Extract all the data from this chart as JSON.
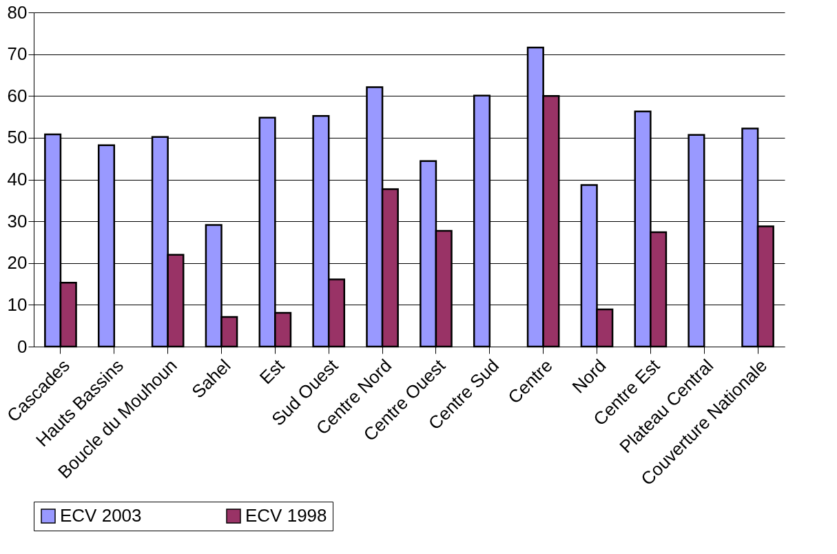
{
  "chart_data": {
    "type": "bar",
    "categories": [
      "Cascades",
      "Hauts Bassins",
      "Boucle du Mouhoun",
      "Sahel",
      "Est",
      "Sud Ouest",
      "Centre Nord",
      "Centre Ouest",
      "Centre Sud",
      "Centre",
      "Nord",
      "Centre Est",
      "Plateau Central",
      "Couverture Nationale"
    ],
    "series": [
      {
        "name": "ECV 2003",
        "color": "#9999ff",
        "values": [
          50.8,
          48.2,
          50.2,
          29.1,
          54.8,
          55.2,
          62.1,
          44.4,
          60.1,
          71.6,
          38.7,
          56.3,
          50.7,
          52.2
        ]
      },
      {
        "name": "ECV 1998",
        "color": "#993366",
        "values": [
          15.3,
          null,
          22.0,
          7.1,
          8.1,
          16.1,
          37.7,
          27.7,
          null,
          60.0,
          8.9,
          27.4,
          null,
          28.8
        ]
      }
    ],
    "ylim": [
      0,
      80
    ],
    "yticks": [
      0,
      10,
      20,
      30,
      40,
      50,
      60,
      70,
      80
    ],
    "grid": "y",
    "legend": "bottom"
  }
}
